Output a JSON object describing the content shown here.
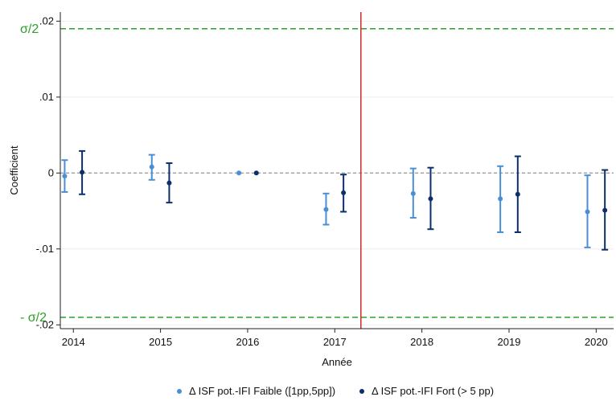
{
  "chart_data": {
    "type": "scatter",
    "subtype": "coefficient-plot-with-confidence-intervals",
    "xlabel": "Année",
    "ylabel": "Coefficient",
    "x_ticks": [
      "2014",
      "2015",
      "2016",
      "2017",
      "2018",
      "2019",
      "2020"
    ],
    "y_ticks": [
      ".02",
      ".01",
      "0",
      "-.01",
      "-.02"
    ],
    "xlim": [
      2013.85,
      2020.2
    ],
    "ylim": [
      -0.0205,
      0.0212
    ],
    "grid": "y-major",
    "zero_line": {
      "y": 0,
      "style": "dashed",
      "color": "#7f7f7f"
    },
    "reference_lines": [
      {
        "label": "σ/2",
        "y": 0.019,
        "color": "#2ca02c",
        "style": "dashed"
      },
      {
        "label": "- σ/2",
        "y": -0.019,
        "color": "#2ca02c",
        "style": "dashed"
      }
    ],
    "vertical_line": {
      "x": 2017.3,
      "color": "#d62728"
    },
    "legend_position": "bottom",
    "series": [
      {
        "name": "Δ ISF pot.-IFI Faible ([1pp,5pp])",
        "color": "#4a8fd6",
        "points": [
          {
            "x": 2013.9,
            "y": -0.0004,
            "lo": -0.0025,
            "hi": 0.0017
          },
          {
            "x": 2014.9,
            "y": 0.0008,
            "lo": -0.0009,
            "hi": 0.0024
          },
          {
            "x": 2015.9,
            "y": 0.0,
            "lo": 0.0,
            "hi": 0.0
          },
          {
            "x": 2016.9,
            "y": -0.0048,
            "lo": -0.0068,
            "hi": -0.0027
          },
          {
            "x": 2017.9,
            "y": -0.0027,
            "lo": -0.0059,
            "hi": 0.0006
          },
          {
            "x": 2018.9,
            "y": -0.0034,
            "lo": -0.0078,
            "hi": 0.0009
          },
          {
            "x": 2019.9,
            "y": -0.0051,
            "lo": -0.0098,
            "hi": -0.0003
          }
        ]
      },
      {
        "name": "Δ ISF pot.-IFI Fort (> 5 pp)",
        "color": "#0b2f6b",
        "points": [
          {
            "x": 2014.1,
            "y": 0.0001,
            "lo": -0.0028,
            "hi": 0.0029
          },
          {
            "x": 2015.1,
            "y": -0.0013,
            "lo": -0.0039,
            "hi": 0.0013
          },
          {
            "x": 2016.1,
            "y": 0.0,
            "lo": 0.0,
            "hi": 0.0
          },
          {
            "x": 2017.1,
            "y": -0.0026,
            "lo": -0.0051,
            "hi": -0.0002
          },
          {
            "x": 2018.1,
            "y": -0.0034,
            "lo": -0.0074,
            "hi": 0.0007
          },
          {
            "x": 2019.1,
            "y": -0.0028,
            "lo": -0.0078,
            "hi": 0.0022
          },
          {
            "x": 2020.1,
            "y": -0.0049,
            "lo": -0.0101,
            "hi": 0.0004
          }
        ]
      }
    ]
  }
}
